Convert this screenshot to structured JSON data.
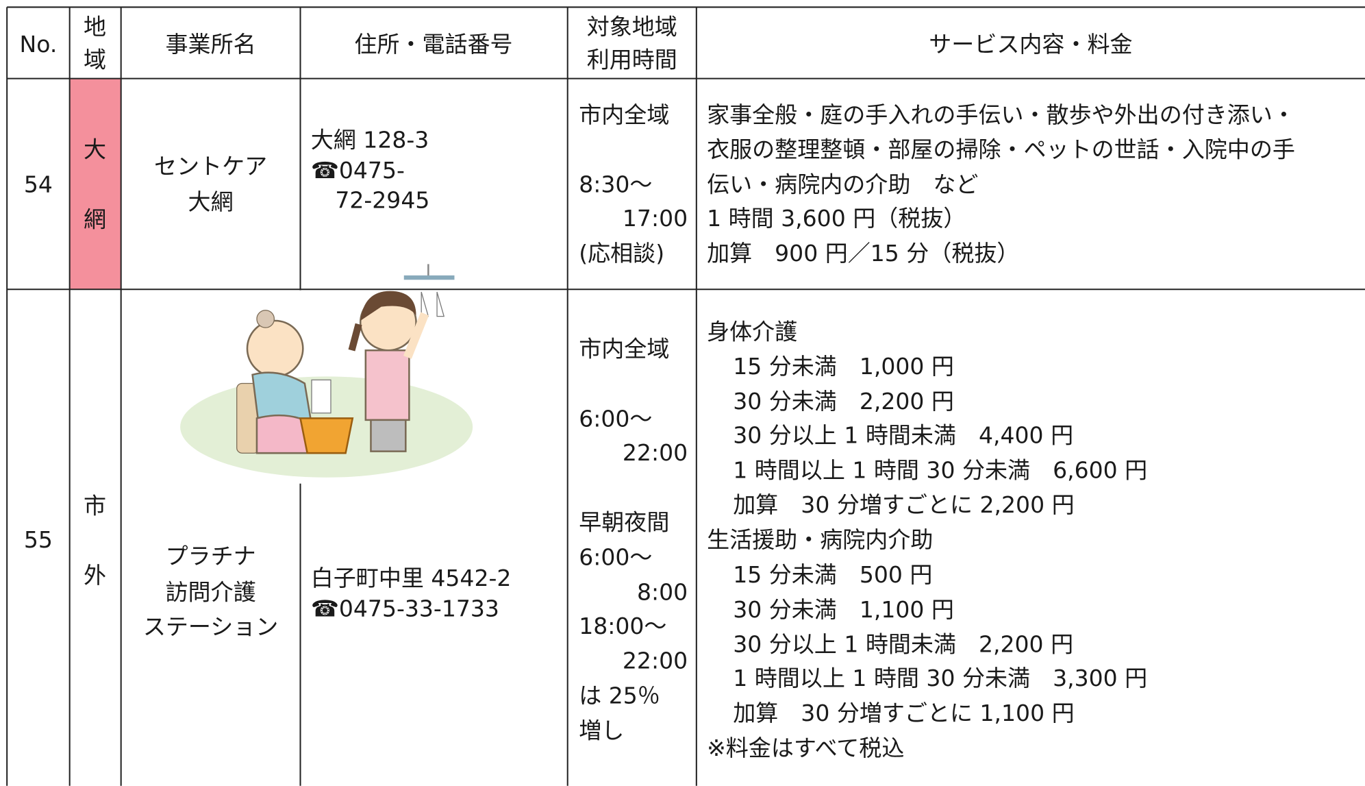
{
  "table": {
    "header": {
      "no": "No.",
      "area": [
        "地",
        "域"
      ],
      "name": "事業所名",
      "address": "住所・電話番号",
      "hours": [
        "対象地域",
        "利用時間"
      ],
      "service": "サービス内容・料金"
    },
    "rows": [
      {
        "no": "54",
        "area": [
          "大",
          "網"
        ],
        "name": [
          "セントケア",
          "大網"
        ],
        "address": [
          "大網 128-3",
          "☎0475-",
          "72-2945"
        ],
        "hours": [
          "市内全域",
          "8:30～",
          "17:00",
          "(応相談)"
        ],
        "service": [
          "家事全般・庭の手入れの手伝い・散歩や外出の付き添い・",
          "衣服の整理整頓・部屋の掃除・ペットの世話・入院中の手",
          "伝い・病院内の介助　など",
          "1 時間 3,600 円（税抜）",
          "加算　900 円／15 分（税抜）"
        ]
      },
      {
        "no": "55",
        "area": [
          "市",
          "外"
        ],
        "name": [
          "プラチナ",
          "訪問介護",
          "ステーション"
        ],
        "address": [
          "白子町中里 4542-2",
          "☎0475-33-1733"
        ],
        "hours": [
          "市内全域",
          "6:00～",
          "22:00",
          "早朝夜間",
          "6:00～",
          "8:00",
          "18:00～",
          "22:00",
          "は 25％",
          "増し"
        ],
        "service": [
          "身体介護",
          "15 分未満　1,000 円",
          "30 分未満　2,200 円",
          "30 分以上 1 時間未満　4,400 円",
          "1 時間以上 1 時間 30 分未満　6,600 円",
          "加算　30 分増すごとに 2,200 円",
          "生活援助・病院内介助",
          "15 分未満　500 円",
          "30 分未満　1,100 円",
          "30 分以上 1 時間未満　2,200 円",
          "1 時間以上 1 時間 30 分未満　3,300 円",
          "加算　30 分増すごとに 1,100 円",
          "※料金はすべて税込"
        ]
      }
    ]
  }
}
